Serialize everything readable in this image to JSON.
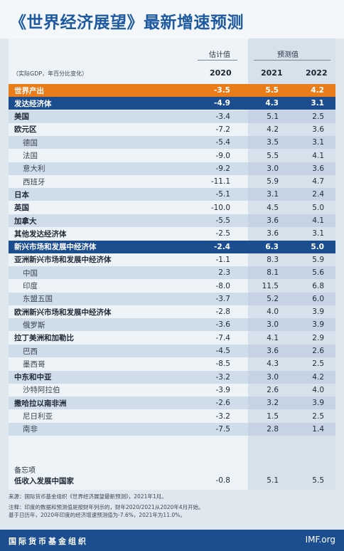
{
  "title": "《世界经济展望》最新增速预测",
  "header": {
    "estimate_label": "估计值",
    "forecast_label": "预测值",
    "unit_label": "（实际GDP，年百分比变化）",
    "years": [
      "2020",
      "2021",
      "2022"
    ]
  },
  "rows": [
    {
      "name": "世界产出",
      "v": [
        "-3.5",
        "5.5",
        "4.2"
      ],
      "style": "world"
    },
    {
      "name": "发达经济体",
      "v": [
        "-4.9",
        "4.3",
        "3.1"
      ],
      "style": "blue"
    },
    {
      "name": "美国",
      "v": [
        "-3.4",
        "5.1",
        "2.5"
      ],
      "style": "normal"
    },
    {
      "name": "欧元区",
      "v": [
        "-7.2",
        "4.2",
        "3.6"
      ],
      "style": "normal"
    },
    {
      "name": "德国",
      "v": [
        "-5.4",
        "3.5",
        "3.1"
      ],
      "style": "sub"
    },
    {
      "name": "法国",
      "v": [
        "-9.0",
        "5.5",
        "4.1"
      ],
      "style": "sub"
    },
    {
      "name": "意大利",
      "v": [
        "-9.2",
        "3.0",
        "3.6"
      ],
      "style": "sub"
    },
    {
      "name": "西班牙",
      "v": [
        "-11.1",
        "5.9",
        "4.7"
      ],
      "style": "sub"
    },
    {
      "name": "日本",
      "v": [
        "-5.1",
        "3.1",
        "2.4"
      ],
      "style": "normal"
    },
    {
      "name": "英国",
      "v": [
        "-10.0",
        "4.5",
        "5.0"
      ],
      "style": "normal"
    },
    {
      "name": "加拿大",
      "v": [
        "-5.5",
        "3.6",
        "4.1"
      ],
      "style": "normal"
    },
    {
      "name": "其他发达经济体",
      "v": [
        "-2.5",
        "3.6",
        "3.1"
      ],
      "style": "normal"
    },
    {
      "name": "新兴市场和发展中经济体",
      "v": [
        "-2.4",
        "6.3",
        "5.0"
      ],
      "style": "blue"
    },
    {
      "name": "亚洲新兴市场和发展中经济体",
      "v": [
        "-1.1",
        "8.3",
        "5.9"
      ],
      "style": "normal"
    },
    {
      "name": "中国",
      "v": [
        "2.3",
        "8.1",
        "5.6"
      ],
      "style": "sub"
    },
    {
      "name": "印度",
      "v": [
        "-8.0",
        "11.5",
        "6.8"
      ],
      "style": "sub"
    },
    {
      "name": "东盟五国",
      "v": [
        "-3.7",
        "5.2",
        "6.0"
      ],
      "style": "sub"
    },
    {
      "name": "欧洲新兴市场和发展中经济体",
      "v": [
        "-2.8",
        "4.0",
        "3.9"
      ],
      "style": "normal"
    },
    {
      "name": "俄罗斯",
      "v": [
        "-3.6",
        "3.0",
        "3.9"
      ],
      "style": "sub"
    },
    {
      "name": "拉丁美洲和加勒比",
      "v": [
        "-7.4",
        "4.1",
        "2.9"
      ],
      "style": "normal"
    },
    {
      "name": "巴西",
      "v": [
        "-4.5",
        "3.6",
        "2.6"
      ],
      "style": "sub"
    },
    {
      "name": "墨西哥",
      "v": [
        "-8.5",
        "4.3",
        "2.5"
      ],
      "style": "sub"
    },
    {
      "name": "中东和中亚",
      "v": [
        "-3.2",
        "3.0",
        "4.2"
      ],
      "style": "normal"
    },
    {
      "name": "沙特阿拉伯",
      "v": [
        "-3.9",
        "2.6",
        "4.0"
      ],
      "style": "sub"
    },
    {
      "name": "撒哈拉以南非洲",
      "v": [
        "-2.6",
        "3.2",
        "3.9"
      ],
      "style": "normal"
    },
    {
      "name": "尼日利亚",
      "v": [
        "-3.2",
        "1.5",
        "2.5"
      ],
      "style": "sub"
    },
    {
      "name": "南非",
      "v": [
        "-7.5",
        "2.8",
        "1.4"
      ],
      "style": "sub"
    }
  ],
  "memo": {
    "label": "备忘项",
    "row": {
      "name": "低收入发展中国家",
      "v": [
        "-0.8",
        "5.1",
        "5.5"
      ]
    }
  },
  "notes": {
    "source": "来源：国际货币基金组织《世界经济展望最新预测》，2021年1月。",
    "note1": "注释：印度的数据和预测值是按财年列示的，财年2020/2021从2020年4月开始。",
    "note2": "基于日历年，2020年印度的经济增速预测值为-7.6%，2021年为11.0%。"
  },
  "footer": {
    "org": "国际货币基金组织",
    "site": "IMF.org"
  },
  "colors": {
    "title_blue": "#1e5aa0",
    "world_orange": "#ea7d1b",
    "group_blue": "#1c4e8f"
  }
}
